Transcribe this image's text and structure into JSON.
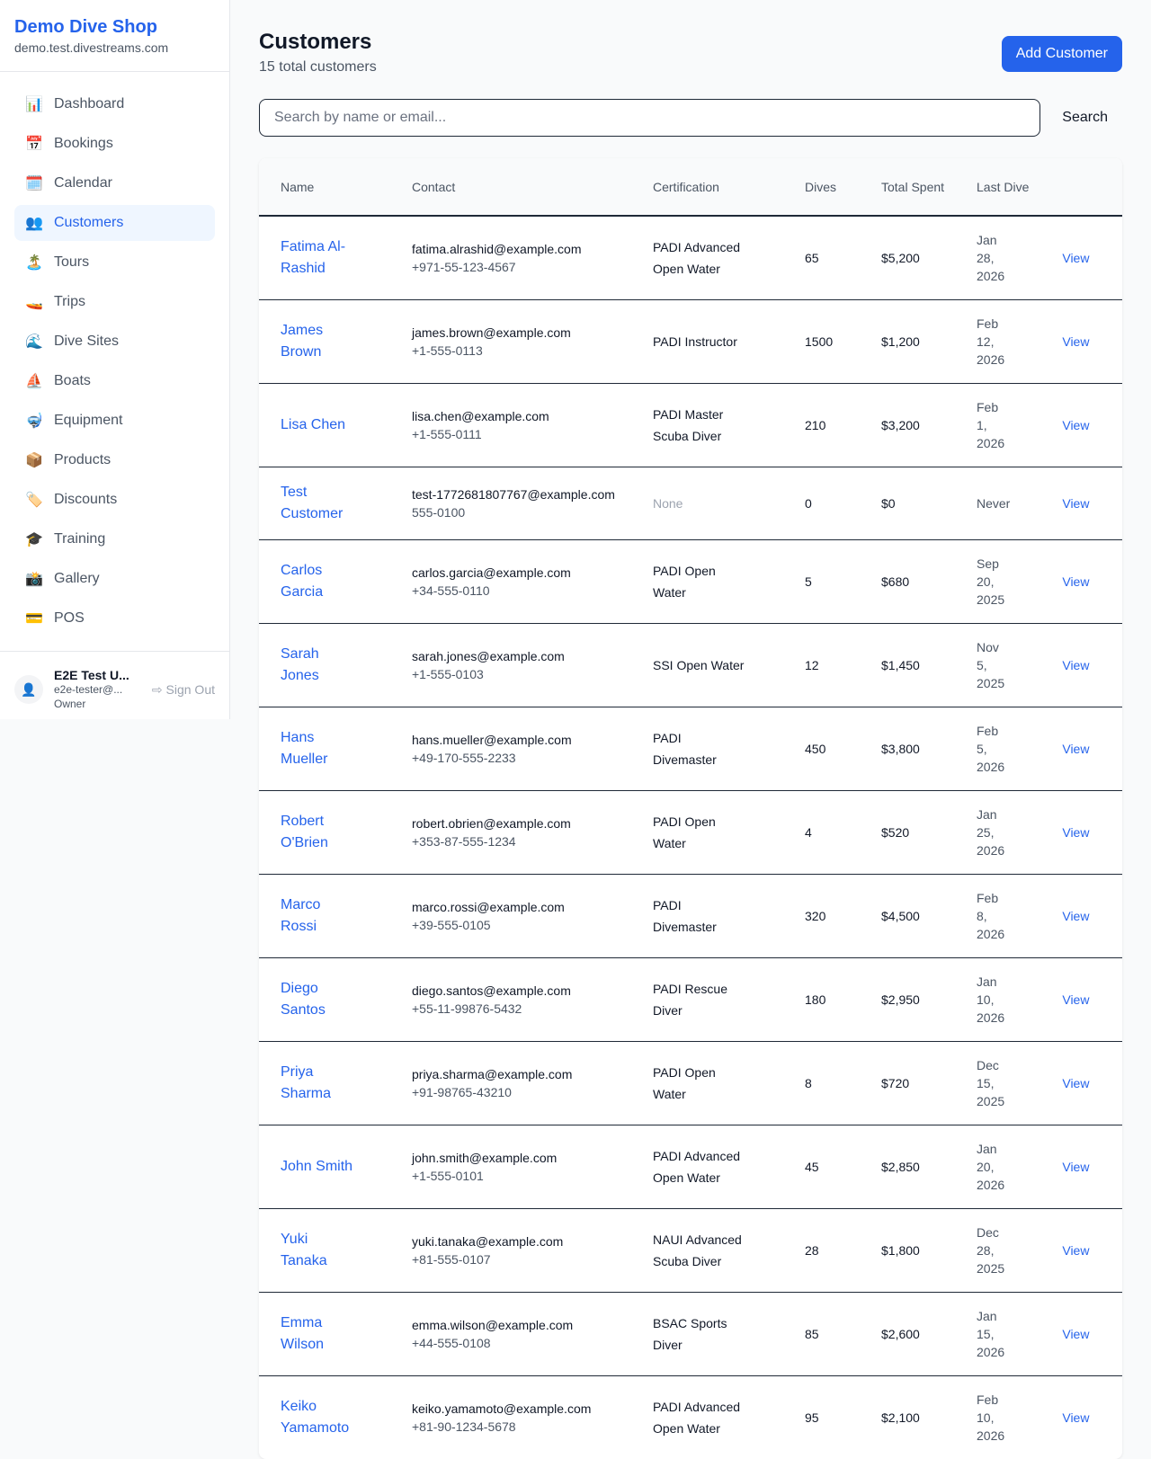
{
  "sidebar": {
    "brand": "Demo Dive Shop",
    "domain": "demo.test.divestreams.com",
    "items": [
      {
        "label": "Dashboard",
        "icon": "📊"
      },
      {
        "label": "Bookings",
        "icon": "📅"
      },
      {
        "label": "Calendar",
        "icon": "🗓️"
      },
      {
        "label": "Customers",
        "icon": "👥",
        "active": true
      },
      {
        "label": "Tours",
        "icon": "🏝️"
      },
      {
        "label": "Trips",
        "icon": "🚤"
      },
      {
        "label": "Dive Sites",
        "icon": "🌊"
      },
      {
        "label": "Boats",
        "icon": "⛵"
      },
      {
        "label": "Equipment",
        "icon": "🤿"
      },
      {
        "label": "Products",
        "icon": "📦"
      },
      {
        "label": "Discounts",
        "icon": "🏷️"
      },
      {
        "label": "Training",
        "icon": "🎓"
      },
      {
        "label": "Gallery",
        "icon": "📸"
      },
      {
        "label": "POS",
        "icon": "💳"
      }
    ],
    "user": {
      "name": "E2E Test U...",
      "email": "e2e-tester@...",
      "role": "Owner",
      "sign_out": "Sign Out"
    }
  },
  "header": {
    "title": "Customers",
    "subtitle": "15 total customers",
    "add_button": "Add Customer"
  },
  "search": {
    "placeholder": "Search by name or email...",
    "button": "Search"
  },
  "table": {
    "columns": [
      "Name",
      "Contact",
      "Certification",
      "Dives",
      "Total Spent",
      "Last Dive"
    ],
    "view_label": "View",
    "rows": [
      {
        "name": "Fatima Al-Rashid",
        "email": "fatima.alrashid@example.com",
        "phone": "+971-55-123-4567",
        "cert": "PADI Advanced Open Water",
        "dives": "65",
        "spent": "$5,200",
        "last": "Jan 28, 2026"
      },
      {
        "name": "James Brown",
        "email": "james.brown@example.com",
        "phone": "+1-555-0113",
        "cert": "PADI Instructor",
        "dives": "1500",
        "spent": "$1,200",
        "last": "Feb 12, 2026"
      },
      {
        "name": "Lisa Chen",
        "email": "lisa.chen@example.com",
        "phone": "+1-555-0111",
        "cert": "PADI Master Scuba Diver",
        "dives": "210",
        "spent": "$3,200",
        "last": "Feb 1, 2026"
      },
      {
        "name": "Test Customer",
        "email": "test-1772681807767@example.com",
        "phone": "555-0100",
        "cert": "None",
        "dives": "0",
        "spent": "$0",
        "last": "Never"
      },
      {
        "name": "Carlos Garcia",
        "email": "carlos.garcia@example.com",
        "phone": "+34-555-0110",
        "cert": "PADI Open Water",
        "dives": "5",
        "spent": "$680",
        "last": "Sep 20, 2025"
      },
      {
        "name": "Sarah Jones",
        "email": "sarah.jones@example.com",
        "phone": "+1-555-0103",
        "cert": "SSI Open Water",
        "dives": "12",
        "spent": "$1,450",
        "last": "Nov 5, 2025"
      },
      {
        "name": "Hans Mueller",
        "email": "hans.mueller@example.com",
        "phone": "+49-170-555-2233",
        "cert": "PADI Divemaster",
        "dives": "450",
        "spent": "$3,800",
        "last": "Feb 5, 2026"
      },
      {
        "name": "Robert O'Brien",
        "email": "robert.obrien@example.com",
        "phone": "+353-87-555-1234",
        "cert": "PADI Open Water",
        "dives": "4",
        "spent": "$520",
        "last": "Jan 25, 2026"
      },
      {
        "name": "Marco Rossi",
        "email": "marco.rossi@example.com",
        "phone": "+39-555-0105",
        "cert": "PADI Divemaster",
        "dives": "320",
        "spent": "$4,500",
        "last": "Feb 8, 2026"
      },
      {
        "name": "Diego Santos",
        "email": "diego.santos@example.com",
        "phone": "+55-11-99876-5432",
        "cert": "PADI Rescue Diver",
        "dives": "180",
        "spent": "$2,950",
        "last": "Jan 10, 2026"
      },
      {
        "name": "Priya Sharma",
        "email": "priya.sharma@example.com",
        "phone": "+91-98765-43210",
        "cert": "PADI Open Water",
        "dives": "8",
        "spent": "$720",
        "last": "Dec 15, 2025"
      },
      {
        "name": "John Smith",
        "email": "john.smith@example.com",
        "phone": "+1-555-0101",
        "cert": "PADI Advanced Open Water",
        "dives": "45",
        "spent": "$2,850",
        "last": "Jan 20, 2026"
      },
      {
        "name": "Yuki Tanaka",
        "email": "yuki.tanaka@example.com",
        "phone": "+81-555-0107",
        "cert": "NAUI Advanced Scuba Diver",
        "dives": "28",
        "spent": "$1,800",
        "last": "Dec 28, 2025"
      },
      {
        "name": "Emma Wilson",
        "email": "emma.wilson@example.com",
        "phone": "+44-555-0108",
        "cert": "BSAC Sports Diver",
        "dives": "85",
        "spent": "$2,600",
        "last": "Jan 15, 2026"
      },
      {
        "name": "Keiko Yamamoto",
        "email": "keiko.yamamoto@example.com",
        "phone": "+81-90-1234-5678",
        "cert": "PADI Advanced Open Water",
        "dives": "95",
        "spent": "$2,100",
        "last": "Feb 10, 2026"
      }
    ]
  },
  "colors": {
    "accent": "#2563eb",
    "active_bg": "#eff6ff"
  }
}
